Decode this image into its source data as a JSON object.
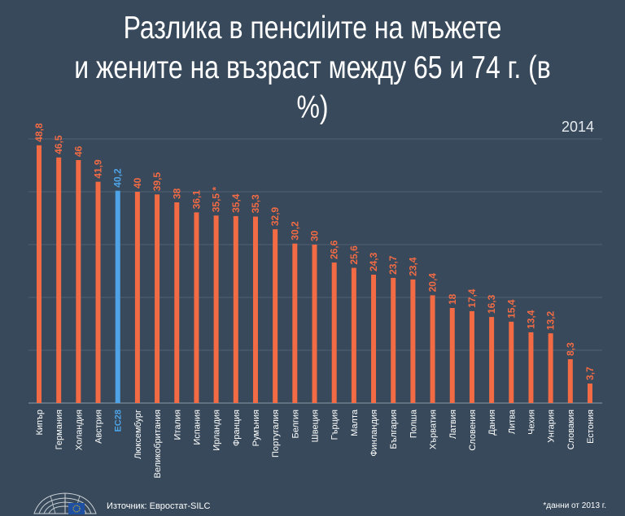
{
  "title_line1": "Разлика в пенсиiите на мъжете",
  "title_line2": "и жените на възраст между 65 и 74 г. (в %)",
  "year": "2014",
  "source": "Източник: Евростат-SILC",
  "footnote": "*данни от 2013 г.",
  "colors": {
    "background": "#37495a",
    "bar": "#f26b45",
    "bar_highlight": "#4ea3e6",
    "grid": "#4f6171"
  },
  "chart_data": {
    "type": "bar",
    "title": "Разлика в пенсиiите на мъжете и жените на възраст между 65 и 74 г. (в %)",
    "categories": [
      "Кипър",
      "Германия",
      "Холандия",
      "Австрия",
      "ЕС28",
      "Люксембург",
      "Великобритания",
      "Италия",
      "Испания",
      "Ирландия",
      "Франция",
      "Румъния",
      "Португалия",
      "Белгия",
      "Швеция",
      "Гърция",
      "Малта",
      "Финландия",
      "България",
      "Полша",
      "Хърватия",
      "Латвия",
      "Словения",
      "Дания",
      "Литва",
      "Чехия",
      "Унгария",
      "Словакия",
      "Естония"
    ],
    "values": [
      48.8,
      46.5,
      46,
      41.9,
      40.2,
      40,
      39.5,
      38,
      36.1,
      35.5,
      35.4,
      35.3,
      32.9,
      30.2,
      30,
      26.6,
      25.6,
      24.3,
      23.7,
      23.4,
      20.4,
      18,
      17.4,
      16.3,
      15.4,
      13.4,
      13.2,
      8.3,
      3.7
    ],
    "value_labels": [
      "48,8",
      "46,5",
      "46",
      "41,9",
      "40,2",
      "40",
      "39,5",
      "38",
      "36,1",
      "35,5 *",
      "35,4",
      "35,3",
      "32,9",
      "30,2",
      "30",
      "26,6",
      "25,6",
      "24,3",
      "23,7",
      "23,4",
      "20,4",
      "18",
      "17,4",
      "16,3",
      "15,4",
      "13,4",
      "13,2",
      "8,3",
      "3,7"
    ],
    "highlight": "ЕС28",
    "ylim": [
      0,
      50
    ],
    "grid": true,
    "xlabel": "",
    "ylabel": ""
  }
}
